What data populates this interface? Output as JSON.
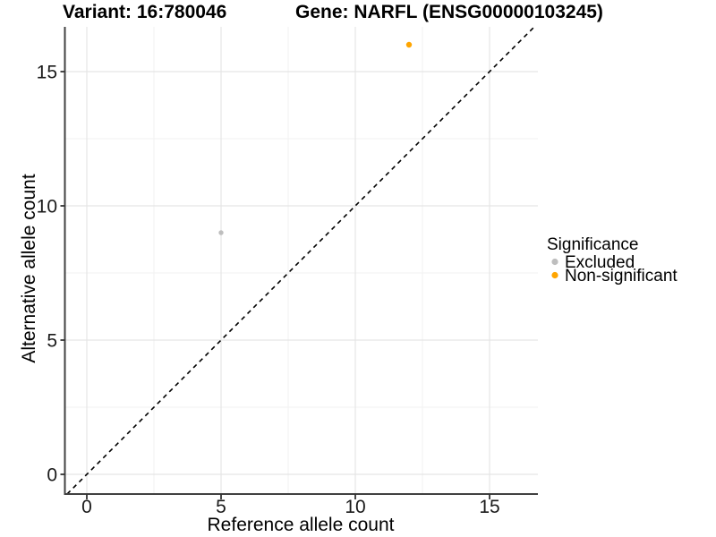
{
  "titles": {
    "variant": "Variant: 16:780046",
    "gene": "Gene: NARFL (ENSG00000103245)"
  },
  "axes": {
    "x": {
      "label": "Reference allele count",
      "tick_labels": [
        "0",
        "5",
        "10",
        "15"
      ]
    },
    "y": {
      "label": "Alternative allele count",
      "tick_labels": [
        "0",
        "5",
        "10",
        "15"
      ]
    }
  },
  "legend": {
    "title": "Significance",
    "items": [
      {
        "label": "Excluded",
        "color": "#BEBEBE"
      },
      {
        "label": "Non-significant",
        "color": "#FFA500"
      }
    ]
  },
  "colors": {
    "axis_line": "#404040",
    "grid_major": "#e5e5e5",
    "grid_minor": "#f2f2f2",
    "identity_line": "#000000"
  },
  "chart_data": {
    "type": "scatter",
    "title_left": "Variant: 16:780046",
    "title_right": "Gene: NARFL (ENSG00000103245)",
    "xlabel": "Reference allele count",
    "ylabel": "Alternative allele count",
    "x_ticks": [
      0,
      5,
      10,
      15
    ],
    "y_ticks": [
      0,
      5,
      10,
      15
    ],
    "xlim": [
      -0.82,
      16.8
    ],
    "ylim": [
      -0.73,
      16.7
    ],
    "grid": "major+minor",
    "legend_position": "right",
    "legend_title": "Significance",
    "series": [
      {
        "name": "Excluded",
        "color": "#BEBEBE",
        "size": 2.7,
        "points": [
          {
            "x": 5,
            "y": 9
          }
        ]
      },
      {
        "name": "Non-significant",
        "color": "#FFA500",
        "size": 3.2,
        "points": [
          {
            "x": 12,
            "y": 16
          }
        ]
      }
    ],
    "reference_line": {
      "type": "identity",
      "equation": "y = x",
      "style": "dashed",
      "color": "#000000"
    }
  }
}
